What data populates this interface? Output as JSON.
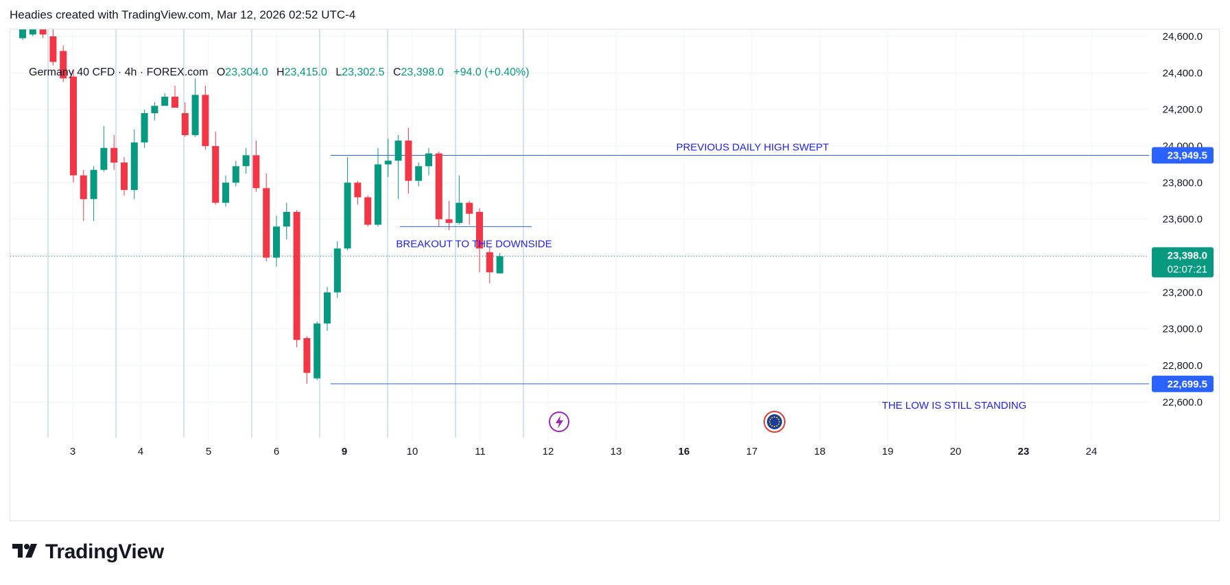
{
  "header": {
    "caption": "Headies created with TradingView.com, Mar 12, 2026 02:52 UTC-4"
  },
  "legend": {
    "symbol": "Germany 40 CFD · 4h · FOREX.com",
    "open_label": "O",
    "open": "23,304.0",
    "high_label": "H",
    "high": "23,415.0",
    "low_label": "L",
    "low": "23,302.5",
    "close_label": "C",
    "close": "23,398.0",
    "change": "+94.0 (+0.40%)"
  },
  "brand": {
    "name": "TradingView",
    "logo_icon": "tradingview-logo-icon"
  },
  "colors": {
    "up": "#089981",
    "down": "#f23645",
    "line": "#2962ff",
    "annotation_text": "#1e22f0",
    "session_line": "#a7c7ec",
    "grid": "#f0f3fa"
  },
  "chart_data": {
    "type": "candlestick",
    "instrument": "Germany 40 CFD",
    "timeframe": "4h",
    "source": "FOREX.com",
    "y_axis": {
      "range": [
        22420,
        24640
      ],
      "ticks": [
        22600,
        22800,
        23000,
        23200,
        23400,
        23600,
        23800,
        24000,
        24200,
        24400,
        24600
      ],
      "tick_labels": [
        "22,600.0",
        "22,800.0",
        "23,000.0",
        "23,200.0",
        "23,400.0",
        "23,600.0",
        "23,800.0",
        "24,000.0",
        "24,200.0",
        "24,400.0",
        "24,600.0"
      ]
    },
    "x_axis": {
      "labels": [
        "3",
        "4",
        "5",
        "6",
        "9",
        "10",
        "11",
        "12",
        "13",
        "16",
        "17",
        "18",
        "19",
        "20",
        "23",
        "24"
      ],
      "bold_labels": [
        "9",
        "16",
        "23"
      ]
    },
    "candles": [
      {
        "o": 24590,
        "h": 24720,
        "l": 24580,
        "c": 24700
      },
      {
        "o": 24610,
        "h": 24720,
        "l": 24600,
        "c": 24700
      },
      {
        "o": 24690,
        "h": 24710,
        "l": 24590,
        "c": 24610
      },
      {
        "o": 24600,
        "h": 24640,
        "l": 24440,
        "c": 24460
      },
      {
        "o": 24520,
        "h": 24550,
        "l": 24350,
        "c": 24370
      },
      {
        "o": 24380,
        "h": 24420,
        "l": 23800,
        "c": 23840
      },
      {
        "o": 23840,
        "h": 23870,
        "l": 23590,
        "c": 23710
      },
      {
        "o": 23710,
        "h": 23890,
        "l": 23590,
        "c": 23870
      },
      {
        "o": 23870,
        "h": 24110,
        "l": 23860,
        "c": 23990
      },
      {
        "o": 23990,
        "h": 24060,
        "l": 23870,
        "c": 23910
      },
      {
        "o": 23910,
        "h": 23940,
        "l": 23730,
        "c": 23760
      },
      {
        "o": 23760,
        "h": 24090,
        "l": 23710,
        "c": 24020
      },
      {
        "o": 24020,
        "h": 24200,
        "l": 23990,
        "c": 24180
      },
      {
        "o": 24180,
        "h": 24240,
        "l": 24140,
        "c": 24220
      },
      {
        "o": 24220,
        "h": 24290,
        "l": 24220,
        "c": 24270
      },
      {
        "o": 24270,
        "h": 24330,
        "l": 24230,
        "c": 24210
      },
      {
        "o": 24180,
        "h": 24240,
        "l": 24050,
        "c": 24060
      },
      {
        "o": 24060,
        "h": 24370,
        "l": 24050,
        "c": 24280
      },
      {
        "o": 24280,
        "h": 24330,
        "l": 23980,
        "c": 24000
      },
      {
        "o": 24000,
        "h": 24080,
        "l": 23680,
        "c": 23690
      },
      {
        "o": 23690,
        "h": 23840,
        "l": 23670,
        "c": 23800
      },
      {
        "o": 23800,
        "h": 23920,
        "l": 23780,
        "c": 23890
      },
      {
        "o": 23890,
        "h": 23990,
        "l": 23850,
        "c": 23950
      },
      {
        "o": 23950,
        "h": 24030,
        "l": 23750,
        "c": 23770
      },
      {
        "o": 23770,
        "h": 23850,
        "l": 23370,
        "c": 23390
      },
      {
        "o": 23390,
        "h": 23620,
        "l": 23340,
        "c": 23560
      },
      {
        "o": 23560,
        "h": 23690,
        "l": 23490,
        "c": 23640
      },
      {
        "o": 23640,
        "h": 23650,
        "l": 22900,
        "c": 22940
      },
      {
        "o": 22950,
        "h": 22960,
        "l": 22700,
        "c": 22760
      },
      {
        "o": 22730,
        "h": 23040,
        "l": 22720,
        "c": 23030
      },
      {
        "o": 23030,
        "h": 23230,
        "l": 22990,
        "c": 23200
      },
      {
        "o": 23200,
        "h": 23480,
        "l": 23170,
        "c": 23440
      },
      {
        "o": 23440,
        "h": 23940,
        "l": 23430,
        "c": 23800
      },
      {
        "o": 23800,
        "h": 23810,
        "l": 23680,
        "c": 23720
      },
      {
        "o": 23720,
        "h": 23730,
        "l": 23560,
        "c": 23570
      },
      {
        "o": 23570,
        "h": 23990,
        "l": 23560,
        "c": 23900
      },
      {
        "o": 23900,
        "h": 24040,
        "l": 23830,
        "c": 23920
      },
      {
        "o": 23920,
        "h": 24060,
        "l": 23710,
        "c": 24030
      },
      {
        "o": 24030,
        "h": 24100,
        "l": 23740,
        "c": 23810
      },
      {
        "o": 23810,
        "h": 23910,
        "l": 23780,
        "c": 23890
      },
      {
        "o": 23890,
        "h": 23990,
        "l": 23840,
        "c": 23960
      },
      {
        "o": 23960,
        "h": 23970,
        "l": 23560,
        "c": 23600
      },
      {
        "o": 23600,
        "h": 23700,
        "l": 23540,
        "c": 23580
      },
      {
        "o": 23580,
        "h": 23840,
        "l": 23570,
        "c": 23690
      },
      {
        "o": 23690,
        "h": 23700,
        "l": 23570,
        "c": 23630
      },
      {
        "o": 23640,
        "h": 23660,
        "l": 23310,
        "c": 23440
      },
      {
        "o": 23420,
        "h": 23450,
        "l": 23250,
        "c": 23310
      },
      {
        "o": 23304,
        "h": 23415,
        "l": 23302.5,
        "c": 23398
      }
    ],
    "horizontal_lines": [
      {
        "price": 23949.5,
        "label": "23,949.5",
        "annotation": "PREVIOUS DAILY HIGH SWEPT"
      },
      {
        "price": 22699.5,
        "label": "22,699.5",
        "annotation": "THE LOW IS STILL STANDING"
      },
      {
        "price": 23560,
        "label": "",
        "annotation": "BREAKOUT TO THE DOWNSIDE"
      }
    ],
    "last_price": {
      "price": 23398.0,
      "label": "23,398.0",
      "countdown": "02:07:21"
    },
    "event_icons": [
      {
        "name": "lightning-event-icon",
        "x_label": "12"
      },
      {
        "name": "eu-flag-event-icon",
        "x_label": "17"
      }
    ]
  }
}
